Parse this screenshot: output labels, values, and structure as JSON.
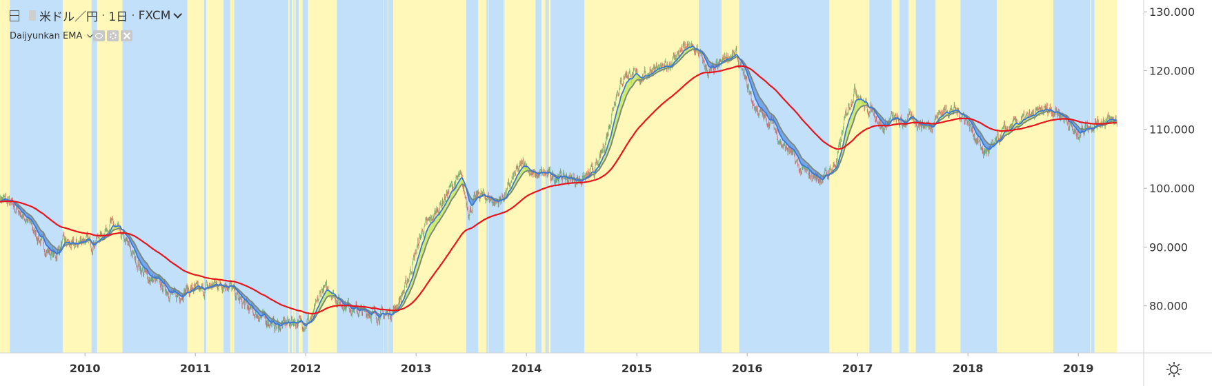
{
  "header": {
    "symbol": "米ドル／円",
    "interval": "1日",
    "source": "FXCM",
    "separator": "·",
    "indicator": "Daijyunkan EMA"
  },
  "colors": {
    "band_blue": "#c2e0fa",
    "band_yellow": "#fff8b8",
    "candle_up": "#4aa45a",
    "candle_down": "#d24a4a",
    "ema_long": "#e8141c",
    "ema_fast_up": "#c8ea60",
    "ema_fast_down": "#3a78d8",
    "ema_mid": "#7a8a7a",
    "axis_text": "#333333"
  },
  "chart_data": {
    "type": "line",
    "title": "",
    "xlabel": "",
    "ylabel": "",
    "xlim": [
      2009.25,
      2019.45
    ],
    "ylim": [
      72,
      132
    ],
    "y_ticks": [
      80,
      90,
      100,
      110,
      120,
      130
    ],
    "y_tick_labels": [
      "80.000",
      "90.000",
      "100.000",
      "110.000",
      "120.000",
      "130.000"
    ],
    "x_ticks": [
      2010,
      2011,
      2012,
      2013,
      2014,
      2015,
      2016,
      2017,
      2018,
      2019
    ],
    "x_tick_labels": [
      "2010",
      "2011",
      "2012",
      "2013",
      "2014",
      "2015",
      "2016",
      "2017",
      "2018",
      "2019"
    ],
    "grid": false,
    "legend": "none",
    "series": [
      {
        "x": [
          2009.25,
          2009.33,
          2009.42,
          2009.5,
          2009.58,
          2009.67,
          2009.75,
          2009.83,
          2009.92,
          2010.0,
          2010.08,
          2010.17,
          2010.25,
          2010.33,
          2010.42,
          2010.5,
          2010.58,
          2010.67,
          2010.75,
          2010.83,
          2010.92,
          2011.0,
          2011.08,
          2011.17,
          2011.25,
          2011.33,
          2011.42,
          2011.5,
          2011.58,
          2011.67,
          2011.75,
          2011.83,
          2011.92,
          2012.0,
          2012.08,
          2012.17,
          2012.25,
          2012.33,
          2012.42,
          2012.5,
          2012.58,
          2012.67,
          2012.75,
          2012.83,
          2012.92,
          2013.0,
          2013.08,
          2013.17,
          2013.25,
          2013.33,
          2013.42,
          2013.5,
          2013.58,
          2013.67,
          2013.75,
          2013.83,
          2013.92,
          2014.0,
          2014.08,
          2014.17,
          2014.25,
          2014.33,
          2014.42,
          2014.5,
          2014.58,
          2014.67,
          2014.75,
          2014.83,
          2014.92,
          2015.0,
          2015.08,
          2015.17,
          2015.25,
          2015.33,
          2015.42,
          2015.5,
          2015.58,
          2015.67,
          2015.75,
          2015.83,
          2015.92,
          2016.0,
          2016.08,
          2016.17,
          2016.25,
          2016.33,
          2016.42,
          2016.5,
          2016.58,
          2016.67,
          2016.75,
          2016.83,
          2016.92,
          2017.0,
          2017.08,
          2017.17,
          2017.25,
          2017.33,
          2017.42,
          2017.5,
          2017.58,
          2017.67,
          2017.75,
          2017.83,
          2017.92,
          2018.0,
          2018.08,
          2018.17,
          2018.25,
          2018.33,
          2018.42,
          2018.5,
          2018.58,
          2018.67,
          2018.75,
          2018.83,
          2018.92,
          2019.0,
          2019.08,
          2019.17,
          2019.25,
          2019.33
        ],
        "y": [
          98.5,
          97.5,
          96.0,
          94.5,
          92.0,
          89.5,
          88.5,
          91.0,
          90.0,
          91.5,
          90.5,
          92.0,
          94.0,
          92.5,
          90.0,
          87.0,
          85.0,
          84.0,
          83.0,
          81.5,
          82.5,
          83.0,
          82.5,
          83.5,
          84.0,
          83.5,
          81.0,
          79.5,
          78.5,
          77.5,
          76.5,
          77.0,
          77.5,
          77.0,
          78.0,
          83.0,
          82.5,
          80.5,
          80.0,
          79.0,
          79.0,
          78.5,
          78.5,
          79.5,
          83.0,
          88.0,
          93.0,
          95.0,
          97.5,
          100.0,
          102.0,
          96.0,
          99.0,
          98.5,
          97.5,
          99.0,
          102.5,
          104.5,
          102.0,
          102.5,
          102.0,
          102.0,
          101.5,
          101.5,
          102.0,
          104.0,
          109.0,
          116.0,
          119.5,
          119.0,
          119.0,
          120.5,
          120.0,
          121.5,
          123.5,
          124.0,
          123.0,
          119.5,
          120.5,
          122.5,
          122.5,
          118.5,
          114.0,
          112.0,
          111.0,
          107.5,
          106.0,
          103.0,
          102.5,
          101.5,
          102.5,
          104.5,
          113.0,
          117.0,
          114.0,
          113.0,
          110.0,
          112.0,
          111.0,
          112.0,
          111.0,
          110.5,
          112.5,
          113.5,
          113.0,
          112.0,
          109.0,
          106.0,
          107.0,
          109.5,
          110.5,
          111.5,
          112.0,
          113.0,
          113.5,
          113.0,
          111.5,
          109.0,
          110.5,
          111.0,
          111.5,
          111.5
        ]
      }
    ]
  },
  "bottom": {
    "settings_icon": "sun-gear-icon"
  }
}
